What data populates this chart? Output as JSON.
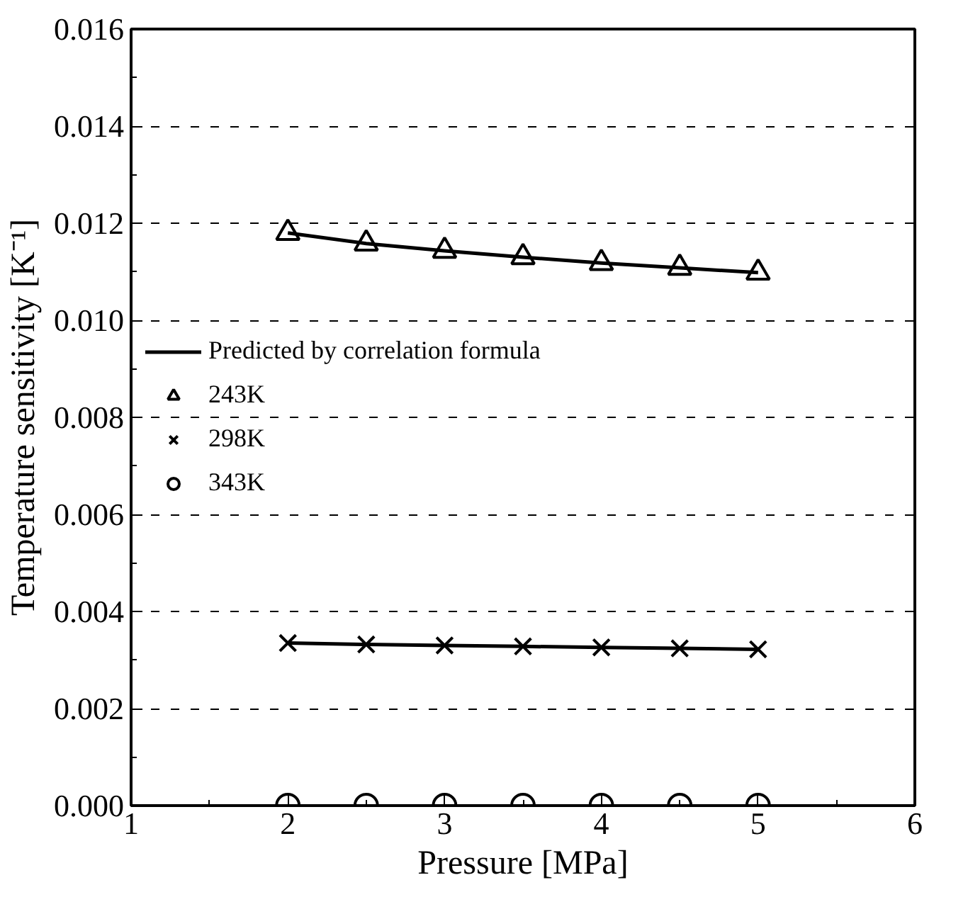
{
  "chart_data": {
    "type": "scatter",
    "xlabel": "Pressure [MPa]",
    "ylabel": "Temperature sensitivity [K⁻¹]",
    "x": [
      2,
      2.5,
      3,
      3.5,
      4,
      4.5,
      5
    ],
    "series": [
      {
        "name": "Predicted by correlation formula",
        "type": "line",
        "color": "#000000",
        "marker": "none",
        "line_style": "solid",
        "values": [
          0.0118,
          0.01158,
          0.01143,
          0.0113,
          0.01118,
          0.01108,
          0.01098
        ]
      },
      {
        "type": "line",
        "color": "#000000",
        "marker": "none",
        "line_style": "solid",
        "values": [
          0.00335,
          0.00332,
          0.0033,
          0.00328,
          0.00326,
          0.00324,
          0.00322
        ]
      },
      {
        "name": "243K",
        "color": "#000000",
        "marker": "triangle",
        "values": [
          0.0118,
          0.01158,
          0.01143,
          0.0113,
          0.01118,
          0.01108,
          0.01098
        ]
      },
      {
        "name": "298K",
        "color": "#000000",
        "marker": "cross",
        "values": [
          0.00335,
          0.00332,
          0.0033,
          0.00328,
          0.00326,
          0.00324,
          0.00322
        ]
      },
      {
        "name": "343K",
        "color": "#000000",
        "marker": "circle",
        "values": [
          0,
          0,
          0,
          0,
          0,
          0,
          0
        ]
      }
    ],
    "xlim": [
      1,
      6
    ],
    "xticks": [
      1,
      2,
      3,
      4,
      5,
      6
    ],
    "ylim": [
      0,
      0.016
    ],
    "yticks": [
      {
        "value": 0,
        "label": "0.000"
      },
      {
        "value": 0.002,
        "label": "0.002"
      },
      {
        "value": 0.004,
        "label": "0.004"
      },
      {
        "value": 0.006,
        "label": "0.006"
      },
      {
        "value": 0.008,
        "label": "0.008"
      },
      {
        "value": 0.01,
        "label": "0.010"
      },
      {
        "value": 0.012,
        "label": "0.012"
      },
      {
        "value": 0.014,
        "label": "0.014"
      },
      {
        "value": 0.016,
        "label": "0.016"
      }
    ],
    "grid": "y",
    "legend": "left"
  }
}
